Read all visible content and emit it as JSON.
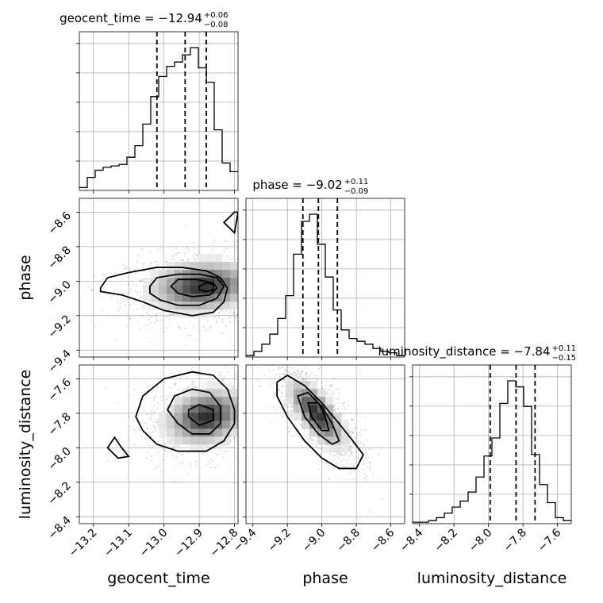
{
  "chart_data": {
    "type": "corner",
    "parameters": [
      {
        "name": "geocent_time",
        "axis_label": "geocent_time",
        "title_main": "geocent_time = −12.94",
        "title_plus": "+0.06",
        "title_minus": "−0.08",
        "range": [
          -13.24,
          -12.79
        ],
        "ticks": [
          -13.2,
          -13.1,
          -13.0,
          -12.9,
          -12.8
        ],
        "tick_labels": [
          "−13.2",
          "−13.1",
          "−13.0",
          "−12.9",
          "−12.8"
        ],
        "quantiles": [
          -13.02,
          -12.94,
          -12.88
        ],
        "hist_edges": [
          -13.24,
          -13.2175,
          -13.195,
          -13.1725,
          -13.15,
          -13.1275,
          -13.105,
          -13.0825,
          -13.06,
          -13.0375,
          -13.015,
          -12.9925,
          -12.97,
          -12.9475,
          -12.925,
          -12.9025,
          -12.88,
          -12.8575,
          -12.835,
          -12.8125,
          -12.79
        ],
        "hist_counts": [
          2,
          9,
          14,
          16,
          17,
          18,
          23,
          31,
          46,
          65,
          79,
          86,
          89,
          94,
          99,
          85,
          75,
          42,
          19,
          13
        ]
      },
      {
        "name": "phase",
        "axis_label": "phase",
        "title_main": "phase = −9.02",
        "title_plus": "+0.11",
        "title_minus": "−0.09",
        "range": [
          -9.44,
          -8.52
        ],
        "ticks": [
          -9.4,
          -9.2,
          -9.0,
          -8.8,
          -8.6
        ],
        "tick_labels": [
          "−9.4",
          "−9.2",
          "−9.0",
          "−8.8",
          "−8.6"
        ],
        "quantiles": [
          -9.11,
          -9.02,
          -8.91
        ],
        "hist_edges": [
          -9.44,
          -9.394,
          -9.348,
          -9.302,
          -9.256,
          -9.21,
          -9.164,
          -9.118,
          -9.072,
          -9.026,
          -8.98,
          -8.934,
          -8.888,
          -8.842,
          -8.796,
          -8.75,
          -8.704,
          -8.658,
          -8.612,
          -8.566,
          -8.52
        ],
        "hist_counts": [
          1,
          4,
          9,
          16,
          27,
          43,
          72,
          95,
          100,
          79,
          56,
          33,
          19,
          13,
          11,
          9,
          6,
          4,
          3,
          1
        ]
      },
      {
        "name": "luminosity_distance",
        "axis_label": "luminosity_distance",
        "title_main": "luminosity_distance = −7.84",
        "title_plus": "+0.11",
        "title_minus": "−0.15",
        "range": [
          -8.44,
          -7.52
        ],
        "ticks": [
          -8.4,
          -8.2,
          -8.0,
          -7.8,
          -7.6
        ],
        "tick_labels": [
          "−8.4",
          "−8.2",
          "−8.0",
          "−7.8",
          "−7.6"
        ],
        "quantiles": [
          -7.99,
          -7.84,
          -7.73
        ],
        "hist_edges": [
          -8.44,
          -8.394,
          -8.348,
          -8.302,
          -8.256,
          -8.21,
          -8.164,
          -8.118,
          -8.072,
          -8.026,
          -7.98,
          -7.934,
          -7.888,
          -7.842,
          -7.796,
          -7.75,
          -7.704,
          -7.658,
          -7.612,
          -7.566,
          -7.52
        ],
        "hist_counts": [
          1,
          1,
          2,
          4,
          7,
          11,
          15,
          21,
          31,
          45,
          57,
          80,
          95,
          91,
          78,
          46,
          26,
          14,
          4,
          2
        ]
      }
    ],
    "pairs": [
      {
        "x": "geocent_time",
        "y": "phase",
        "density_peak": [
          -12.89,
          -9.03
        ],
        "spread": [
          0.09,
          0.09
        ],
        "contours": [
          [
            [
              -13.18,
              -9.04
            ],
            [
              -13.16,
              -8.98
            ],
            [
              -13.1,
              -8.95
            ],
            [
              -13.02,
              -8.92
            ],
            [
              -12.95,
              -8.92
            ],
            [
              -12.88,
              -8.94
            ],
            [
              -12.84,
              -8.98
            ],
            [
              -12.82,
              -9.04
            ],
            [
              -12.83,
              -9.12
            ],
            [
              -12.86,
              -9.18
            ],
            [
              -12.92,
              -9.2
            ],
            [
              -13.0,
              -9.17
            ],
            [
              -13.06,
              -9.12
            ],
            [
              -13.12,
              -9.08
            ],
            [
              -13.18,
              -9.06
            ]
          ],
          [
            [
              -13.04,
              -9.03
            ],
            [
              -13.02,
              -8.98
            ],
            [
              -12.96,
              -8.96
            ],
            [
              -12.9,
              -8.96
            ],
            [
              -12.85,
              -8.98
            ],
            [
              -12.83,
              -9.03
            ],
            [
              -12.85,
              -9.1
            ],
            [
              -12.9,
              -9.14
            ],
            [
              -12.96,
              -9.14
            ],
            [
              -13.01,
              -9.11
            ],
            [
              -13.04,
              -9.07
            ]
          ],
          [
            [
              -12.98,
              -9.03
            ],
            [
              -12.96,
              -8.99
            ],
            [
              -12.91,
              -8.99
            ],
            [
              -12.86,
              -9.01
            ],
            [
              -12.85,
              -9.04
            ],
            [
              -12.87,
              -9.08
            ],
            [
              -12.92,
              -9.09
            ],
            [
              -12.96,
              -9.07
            ]
          ],
          [
            [
              -12.9,
              -9.03
            ],
            [
              -12.88,
              -9.01
            ],
            [
              -12.86,
              -9.02
            ],
            [
              -12.86,
              -9.05
            ],
            [
              -12.88,
              -9.06
            ],
            [
              -12.9,
              -9.05
            ]
          ],
          [
            [
              -12.8,
              -8.72
            ],
            [
              -12.83,
              -8.66
            ],
            [
              -12.8,
              -8.6
            ],
            [
              -12.79,
              -8.6
            ]
          ]
        ]
      },
      {
        "x": "geocent_time",
        "y": "luminosity_distance",
        "density_peak": [
          -12.88,
          -7.82
        ],
        "spread": [
          0.07,
          0.1
        ],
        "contours": [
          [
            [
              -13.08,
              -7.82
            ],
            [
              -13.06,
              -7.7
            ],
            [
              -13.0,
              -7.6
            ],
            [
              -12.92,
              -7.56
            ],
            [
              -12.86,
              -7.58
            ],
            [
              -12.82,
              -7.66
            ],
            [
              -12.8,
              -7.78
            ],
            [
              -12.8,
              -7.86
            ],
            [
              -12.83,
              -7.96
            ],
            [
              -12.88,
              -8.02
            ],
            [
              -12.96,
              -8.02
            ],
            [
              -13.02,
              -7.98
            ],
            [
              -13.06,
              -7.9
            ]
          ],
          [
            [
              -12.99,
              -7.78
            ],
            [
              -12.97,
              -7.7
            ],
            [
              -12.92,
              -7.66
            ],
            [
              -12.87,
              -7.68
            ],
            [
              -12.84,
              -7.76
            ],
            [
              -12.84,
              -7.86
            ],
            [
              -12.87,
              -7.92
            ],
            [
              -12.92,
              -7.92
            ],
            [
              -12.96,
              -7.86
            ]
          ],
          [
            [
              -12.93,
              -7.78
            ],
            [
              -12.9,
              -7.75
            ],
            [
              -12.86,
              -7.78
            ],
            [
              -12.86,
              -7.84
            ],
            [
              -12.9,
              -7.87
            ],
            [
              -12.93,
              -7.82
            ]
          ],
          [
            [
              -13.14,
              -7.94
            ],
            [
              -13.12,
              -8.0
            ],
            [
              -13.1,
              -8.05
            ],
            [
              -13.13,
              -8.06
            ],
            [
              -13.16,
              -8.0
            ]
          ]
        ]
      },
      {
        "x": "phase",
        "y": "luminosity_distance",
        "density_peak": [
          -9.03,
          -7.8
        ],
        "spread": [
          0.1,
          0.12
        ],
        "contours": [
          [
            [
              -9.26,
              -7.62
            ],
            [
              -9.2,
              -7.58
            ],
            [
              -9.1,
              -7.64
            ],
            [
              -9.0,
              -7.74
            ],
            [
              -8.9,
              -7.86
            ],
            [
              -8.82,
              -7.96
            ],
            [
              -8.76,
              -8.04
            ],
            [
              -8.8,
              -8.12
            ],
            [
              -8.9,
              -8.12
            ],
            [
              -9.0,
              -8.06
            ],
            [
              -9.1,
              -7.96
            ],
            [
              -9.2,
              -7.82
            ],
            [
              -9.26,
              -7.7
            ]
          ],
          [
            [
              -9.14,
              -7.7
            ],
            [
              -9.08,
              -7.68
            ],
            [
              -9.0,
              -7.76
            ],
            [
              -8.94,
              -7.86
            ],
            [
              -8.9,
              -7.96
            ],
            [
              -8.94,
              -7.98
            ],
            [
              -9.02,
              -7.92
            ],
            [
              -9.1,
              -7.82
            ]
          ],
          [
            [
              -9.08,
              -7.74
            ],
            [
              -9.02,
              -7.74
            ],
            [
              -8.98,
              -7.82
            ],
            [
              -8.96,
              -7.9
            ],
            [
              -9.0,
              -7.9
            ],
            [
              -9.06,
              -7.82
            ]
          ]
        ]
      }
    ],
    "grid": true,
    "legend": "none"
  }
}
